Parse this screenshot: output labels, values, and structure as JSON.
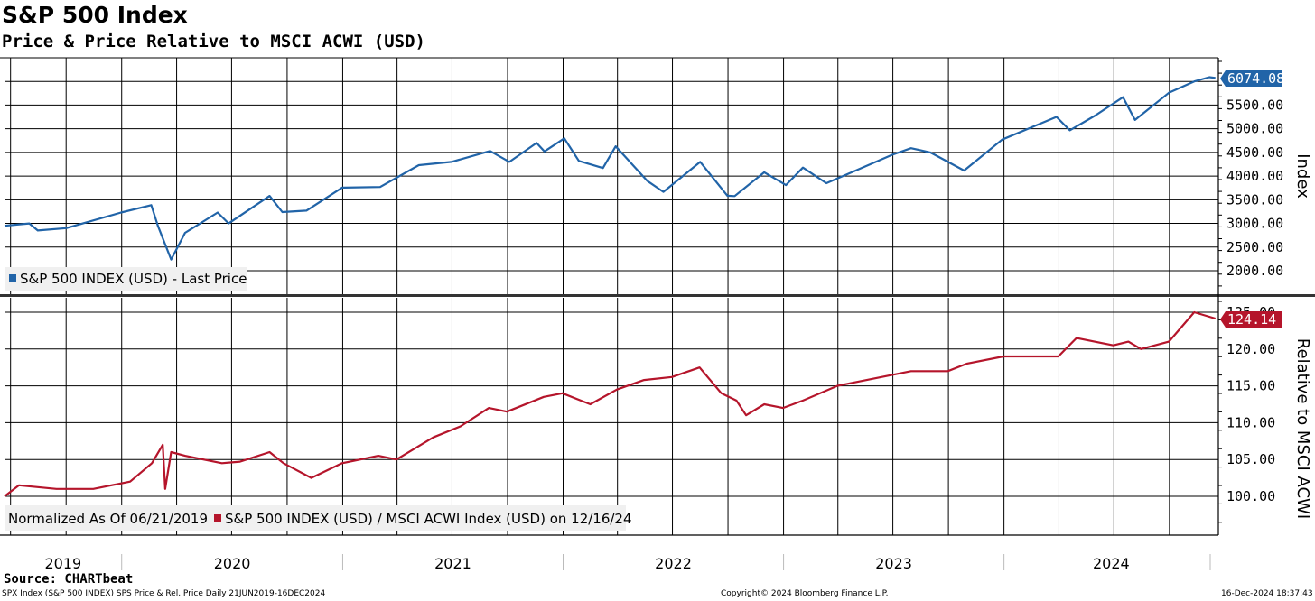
{
  "header": {
    "title": "S&P 500 Index",
    "subtitle": "Price & Price Relative to MSCI ACWI (USD)"
  },
  "footer": {
    "source": "Source: CHARTbeat",
    "left": "SPX Index (S&P 500 INDEX) SPS Price & Rel. Price  Daily 21JUN2019-16DEC2024",
    "center": "Copyright© 2024 Bloomberg Finance L.P.",
    "right": "16-Dec-2024 18:37:43"
  },
  "colors": {
    "price": "#2164a8",
    "relative": "#b5152b"
  },
  "chart_data": [
    {
      "type": "line",
      "ylabel": "Index",
      "y_ticks": [
        "2000.00",
        "2500.00",
        "3000.00",
        "3500.00",
        "4000.00",
        "4500.00",
        "5000.00",
        "5500.00"
      ],
      "last_value_label": "6074.08",
      "legend": "S&P 500 INDEX (USD) - Last Price",
      "series": [
        {
          "name": "S&P 500 INDEX (USD) - Last Price",
          "x": [
            "2019-06-21",
            "2019-08-01",
            "2019-08-15",
            "2019-10-01",
            "2019-12-31",
            "2020-02-19",
            "2020-03-01",
            "2020-03-23",
            "2020-04-15",
            "2020-06-08",
            "2020-06-26",
            "2020-09-02",
            "2020-09-23",
            "2020-11-02",
            "2020-12-31",
            "2021-03-04",
            "2021-05-07",
            "2021-06-30",
            "2021-09-02",
            "2021-10-04",
            "2021-11-18",
            "2021-12-01",
            "2022-01-03",
            "2022-01-27",
            "2022-03-08",
            "2022-03-29",
            "2022-05-20",
            "2022-06-16",
            "2022-08-16",
            "2022-09-30",
            "2022-10-12",
            "2022-11-30",
            "2023-01-05",
            "2023-02-02",
            "2023-03-13",
            "2023-06-30",
            "2023-07-31",
            "2023-09-01",
            "2023-10-27",
            "2023-12-29",
            "2024-03-28",
            "2024-04-19",
            "2024-05-31",
            "2024-07-16",
            "2024-08-05",
            "2024-09-30",
            "2024-11-11",
            "2024-12-06",
            "2024-12-16"
          ],
          "y": [
            2950,
            3000,
            2850,
            2900,
            3230,
            3386,
            2950,
            2237,
            2800,
            3230,
            3000,
            3580,
            3240,
            3270,
            3756,
            3770,
            4230,
            4300,
            4530,
            4300,
            4700,
            4520,
            4796,
            4320,
            4170,
            4630,
            3900,
            3667,
            4300,
            3585,
            3577,
            4080,
            3810,
            4180,
            3850,
            4450,
            4590,
            4500,
            4117,
            4770,
            5250,
            4967,
            5280,
            5667,
            5186,
            5760,
            6000,
            6090,
            6074
          ]
        }
      ]
    },
    {
      "type": "line",
      "ylabel": "Relative to MSCI ACWI",
      "y_ticks": [
        "100.00",
        "105.00",
        "110.00",
        "115.00",
        "120.00",
        "125.00"
      ],
      "last_value_label": "124.14",
      "legend_prefix": "Normalized As Of 06/21/2019",
      "legend": "S&P 500 INDEX (USD) / MSCI ACWI Index (USD) on 12/16/24",
      "series": [
        {
          "name": "S&P 500 INDEX (USD) / MSCI ACWI Index (USD) on 12/16/24",
          "x": [
            "2019-06-21",
            "2019-07-15",
            "2019-09-15",
            "2019-11-15",
            "2020-01-15",
            "2020-02-20",
            "2020-03-09",
            "2020-03-13",
            "2020-03-23",
            "2020-04-15",
            "2020-06-15",
            "2020-07-15",
            "2020-09-02",
            "2020-09-25",
            "2020-11-10",
            "2020-12-31",
            "2021-03-01",
            "2021-03-31",
            "2021-05-31",
            "2021-07-15",
            "2021-08-31",
            "2021-09-30",
            "2021-11-30",
            "2021-12-31",
            "2022-02-15",
            "2022-03-31",
            "2022-05-15",
            "2022-06-30",
            "2022-08-15",
            "2022-09-20",
            "2022-10-15",
            "2022-10-31",
            "2022-11-30",
            "2022-12-31",
            "2023-02-02",
            "2023-03-31",
            "2023-06-30",
            "2023-07-31",
            "2023-09-30",
            "2023-10-31",
            "2023-12-31",
            "2024-03-31",
            "2024-04-30",
            "2024-06-30",
            "2024-07-25",
            "2024-08-15",
            "2024-09-30",
            "2024-11-11",
            "2024-12-16"
          ],
          "y": [
            100,
            101.5,
            101,
            101,
            102,
            104.5,
            107,
            101,
            106,
            105.5,
            104.5,
            104.7,
            106,
            104.5,
            102.5,
            104.5,
            105.5,
            105,
            108,
            109.5,
            112,
            111.5,
            113.5,
            114,
            112.5,
            114.5,
            115.8,
            116.2,
            117.5,
            114,
            113,
            111,
            112.5,
            112,
            113,
            115,
            116.5,
            117,
            117,
            118,
            119,
            119,
            121.5,
            120.5,
            121,
            120,
            121,
            125,
            124.14
          ]
        }
      ]
    }
  ],
  "x_axis": {
    "labels": [
      "2019",
      "2020",
      "2021",
      "2022",
      "2023",
      "2024"
    ]
  }
}
